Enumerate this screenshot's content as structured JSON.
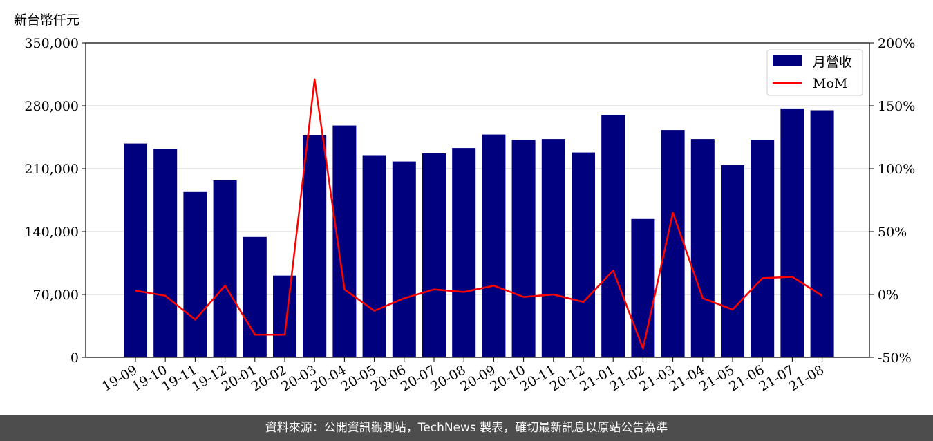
{
  "unit_label": "新台幣仟元",
  "footer": "資料來源：公開資訊觀測站，TechNews 製表，確切最新訊息以原站公告為準",
  "colors": {
    "bar": "#00007f",
    "line": "#ff0000",
    "grid": "#d9d9d9",
    "footer_bg": "#4d4d4d"
  },
  "chart_data": {
    "type": "bar",
    "categories": [
      "19-09",
      "19-10",
      "19-11",
      "19-12",
      "20-01",
      "20-02",
      "20-03",
      "20-04",
      "20-05",
      "20-06",
      "20-07",
      "20-08",
      "20-09",
      "20-10",
      "20-11",
      "20-12",
      "21-01",
      "21-02",
      "21-03",
      "21-04",
      "21-05",
      "21-06",
      "21-07",
      "21-08"
    ],
    "series": [
      {
        "name": "月營收",
        "type": "bar",
        "axis": "left",
        "values": [
          238000,
          232000,
          184000,
          197000,
          134000,
          91000,
          247000,
          258000,
          225000,
          218000,
          227000,
          233000,
          248000,
          242000,
          243000,
          228000,
          270000,
          154000,
          253000,
          243000,
          214000,
          242000,
          277000,
          275000
        ]
      },
      {
        "name": "MoM",
        "type": "line",
        "axis": "right",
        "values": [
          3,
          -1,
          -20,
          7,
          -32,
          -32,
          171,
          4,
          -13,
          -3,
          4,
          2,
          7,
          -2,
          0,
          -6,
          19,
          -43,
          65,
          -3,
          -12,
          13,
          14,
          -1
        ]
      }
    ],
    "left_axis": {
      "ylim": [
        0,
        350000
      ],
      "ticks": [
        0,
        70000,
        140000,
        210000,
        280000,
        350000
      ],
      "tick_labels": [
        "0",
        "70,000",
        "140,000",
        "210,000",
        "280,000",
        "350,000"
      ]
    },
    "right_axis": {
      "ylim": [
        -50,
        200
      ],
      "ticks": [
        -50,
        0,
        50,
        100,
        150,
        200
      ],
      "tick_labels": [
        "-50%",
        "0%",
        "50%",
        "100%",
        "150%",
        "200%"
      ]
    },
    "grid": true,
    "legend": {
      "placement": "top-right",
      "entries": [
        "月營收",
        "MoM"
      ]
    }
  }
}
